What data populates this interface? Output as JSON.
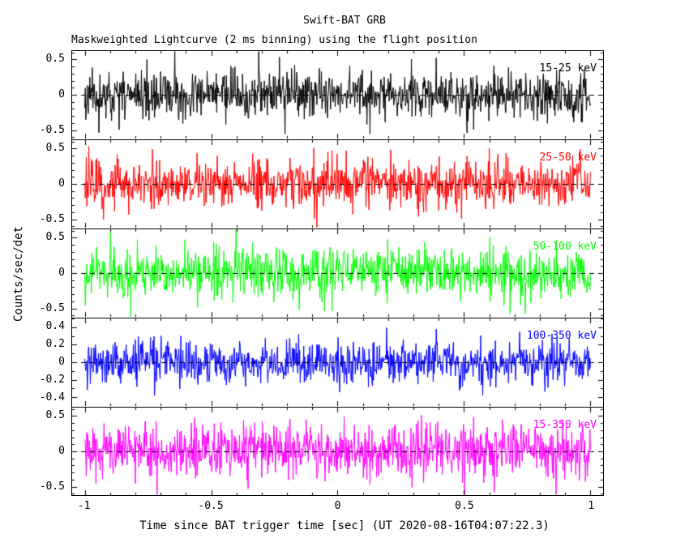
{
  "chart_data": {
    "type": "line",
    "title": "Swift-BAT GRB",
    "subtitle": "Maskweighted Lightcurve (2 ms binning) using the flight position",
    "xlabel": "Time since BAT trigger time [sec] (UT 2020-08-16T04:07:22.3)",
    "ylabel": "Counts/sec/det",
    "bin_ms": 2,
    "xlim": [
      -1.05,
      1.05
    ],
    "x_data_range": [
      -1,
      1
    ],
    "xticks": [
      -1,
      -0.5,
      0,
      0.5,
      1
    ],
    "xtick_labels": [
      "-1",
      "-0.5",
      "0",
      "0.5",
      "1"
    ],
    "x_minor_step": 0.1,
    "grid": false,
    "zero_line": {
      "style": "dashed",
      "color": "#000000"
    },
    "panels": [
      {
        "label": "15-25 keV",
        "color": "#000000",
        "ylim": [
          -0.62,
          0.62
        ],
        "yticks": [
          0.5,
          0,
          -0.5
        ],
        "ytick_labels": [
          "0.5",
          "0",
          "-0.5"
        ],
        "mean": 0,
        "noise_std": 0.16,
        "seed": 11
      },
      {
        "label": "25-50 keV",
        "color": "#ff0000",
        "ylim": [
          -0.62,
          0.62
        ],
        "yticks": [
          0.5,
          0,
          -0.5
        ],
        "ytick_labels": [
          "0.5",
          "0",
          "-0.5"
        ],
        "mean": 0,
        "noise_std": 0.17,
        "seed": 22
      },
      {
        "label": "50-100 keV",
        "color": "#00ff00",
        "ylim": [
          -0.62,
          0.62
        ],
        "yticks": [
          0.5,
          0,
          -0.5
        ],
        "ytick_labels": [
          "0.5",
          "0",
          "-0.5"
        ],
        "mean": 0,
        "noise_std": 0.17,
        "seed": 33
      },
      {
        "label": "100-350 keV",
        "color": "#0000ff",
        "ylim": [
          -0.5,
          0.5
        ],
        "yticks": [
          0.4,
          0.2,
          0,
          -0.2,
          -0.4
        ],
        "ytick_labels": [
          "0.4",
          "0.2",
          "0",
          "-0.2",
          "-0.4"
        ],
        "mean": 0,
        "noise_std": 0.12,
        "seed": 44
      },
      {
        "label": "15-350 keV",
        "color": "#ff00ff",
        "ylim": [
          -0.62,
          0.62
        ],
        "yticks": [
          0.5,
          0,
          -0.5
        ],
        "ytick_labels": [
          "0.5",
          "0",
          "-0.5"
        ],
        "mean": 0,
        "noise_std": 0.19,
        "seed": 55
      }
    ]
  }
}
